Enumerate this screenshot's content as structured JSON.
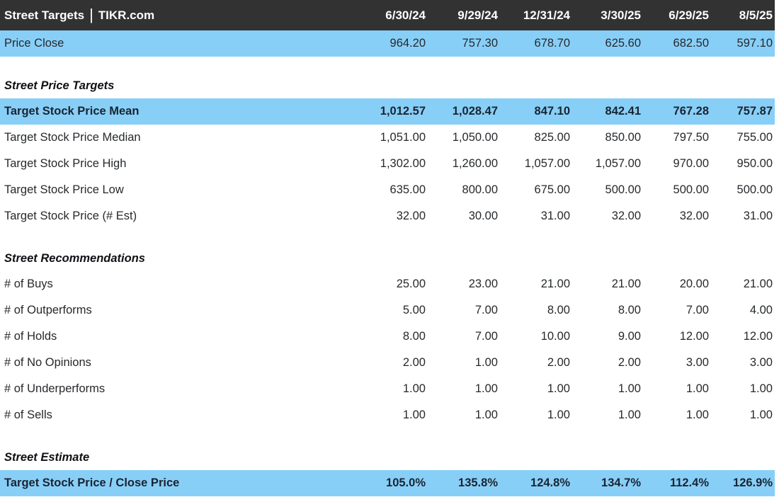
{
  "header": {
    "title": "Street Targets",
    "separator": "|",
    "brand": "TIKR.com"
  },
  "colors": {
    "header_bg": "#323232",
    "header_text": "#ffffff",
    "highlight_blue": "#88CFF8",
    "text_regular": "#26292c",
    "text_bold": "#1a2430"
  },
  "chart_data": {
    "type": "table",
    "title": "Street Targets | TIKR.com",
    "columns": [
      "6/30/24",
      "9/29/24",
      "12/31/24",
      "3/30/25",
      "6/29/25",
      "8/5/25"
    ],
    "sections": [
      {
        "heading": null,
        "rows": [
          {
            "label": "Price Close",
            "highlight": true,
            "bold": false,
            "values": [
              "964.20",
              "757.30",
              "678.70",
              "625.60",
              "682.50",
              "597.10"
            ]
          }
        ]
      },
      {
        "heading": "Street Price Targets",
        "rows": [
          {
            "label": "Target Stock Price Mean",
            "highlight": true,
            "bold": true,
            "values": [
              "1,012.57",
              "1,028.47",
              "847.10",
              "842.41",
              "767.28",
              "757.87"
            ]
          },
          {
            "label": "Target Stock Price Median",
            "highlight": false,
            "bold": false,
            "values": [
              "1,051.00",
              "1,050.00",
              "825.00",
              "850.00",
              "797.50",
              "755.00"
            ]
          },
          {
            "label": "Target Stock Price High",
            "highlight": false,
            "bold": false,
            "values": [
              "1,302.00",
              "1,260.00",
              "1,057.00",
              "1,057.00",
              "970.00",
              "950.00"
            ]
          },
          {
            "label": "Target Stock Price Low",
            "highlight": false,
            "bold": false,
            "values": [
              "635.00",
              "800.00",
              "675.00",
              "500.00",
              "500.00",
              "500.00"
            ]
          },
          {
            "label": "Target Stock Price (# Est)",
            "highlight": false,
            "bold": false,
            "values": [
              "32.00",
              "30.00",
              "31.00",
              "32.00",
              "32.00",
              "31.00"
            ]
          }
        ]
      },
      {
        "heading": "Street Recommendations",
        "rows": [
          {
            "label": "# of Buys",
            "highlight": false,
            "bold": false,
            "values": [
              "25.00",
              "23.00",
              "21.00",
              "21.00",
              "20.00",
              "21.00"
            ]
          },
          {
            "label": "# of Outperforms",
            "highlight": false,
            "bold": false,
            "values": [
              "5.00",
              "7.00",
              "8.00",
              "8.00",
              "7.00",
              "4.00"
            ]
          },
          {
            "label": "# of Holds",
            "highlight": false,
            "bold": false,
            "values": [
              "8.00",
              "7.00",
              "10.00",
              "9.00",
              "12.00",
              "12.00"
            ]
          },
          {
            "label": "# of No Opinions",
            "highlight": false,
            "bold": false,
            "values": [
              "2.00",
              "1.00",
              "2.00",
              "2.00",
              "3.00",
              "3.00"
            ]
          },
          {
            "label": "# of Underperforms",
            "highlight": false,
            "bold": false,
            "values": [
              "1.00",
              "1.00",
              "1.00",
              "1.00",
              "1.00",
              "1.00"
            ]
          },
          {
            "label": "# of Sells",
            "highlight": false,
            "bold": false,
            "values": [
              "1.00",
              "1.00",
              "1.00",
              "1.00",
              "1.00",
              "1.00"
            ]
          }
        ]
      },
      {
        "heading": "Street Estimate",
        "rows": [
          {
            "label": "Target Stock Price / Close Price",
            "highlight": true,
            "bold": true,
            "values": [
              "105.0%",
              "135.8%",
              "124.8%",
              "134.7%",
              "112.4%",
              "126.9%"
            ]
          }
        ]
      }
    ]
  }
}
